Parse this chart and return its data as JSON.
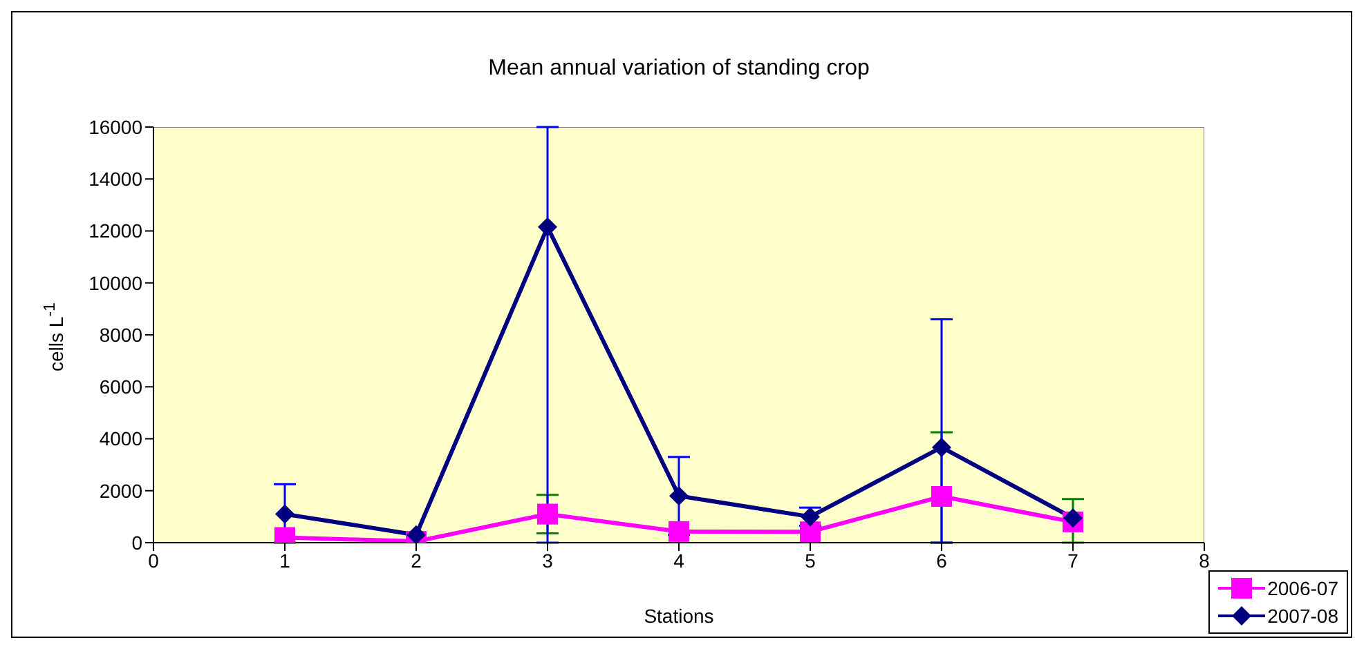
{
  "chart_data": {
    "type": "line",
    "title": "Mean annual variation of standing crop",
    "xlabel": "Stations",
    "ylabel": "cells L$^{-1}$",
    "x": [
      1,
      2,
      3,
      4,
      5,
      6,
      7
    ],
    "series": [
      {
        "name": "2006-07",
        "color": "#ff00ff",
        "marker": "square",
        "values": [
          200,
          50,
          1100,
          430,
          420,
          1780,
          800
        ],
        "errors": [
          null,
          null,
          740,
          null,
          null,
          [
            0,
            4250
          ],
          [
            0,
            1680
          ]
        ]
      },
      {
        "name": "2007-08",
        "color": "#000080",
        "marker": "diamond",
        "values": [
          1100,
          300,
          12150,
          1800,
          1000,
          3670,
          950
        ],
        "errors": [
          [
            0,
            2250
          ],
          null,
          [
            0,
            16000
          ],
          1500,
          350,
          [
            0,
            8600
          ],
          null
        ]
      }
    ],
    "xlim": [
      0,
      8
    ],
    "xticks": [
      0,
      1,
      2,
      3,
      4,
      5,
      6,
      7,
      8
    ],
    "ylim": [
      0,
      16000
    ],
    "yticks": [
      0,
      2000,
      4000,
      6000,
      8000,
      10000,
      12000,
      14000,
      16000
    ],
    "grid": false,
    "legend": "bottom right"
  }
}
